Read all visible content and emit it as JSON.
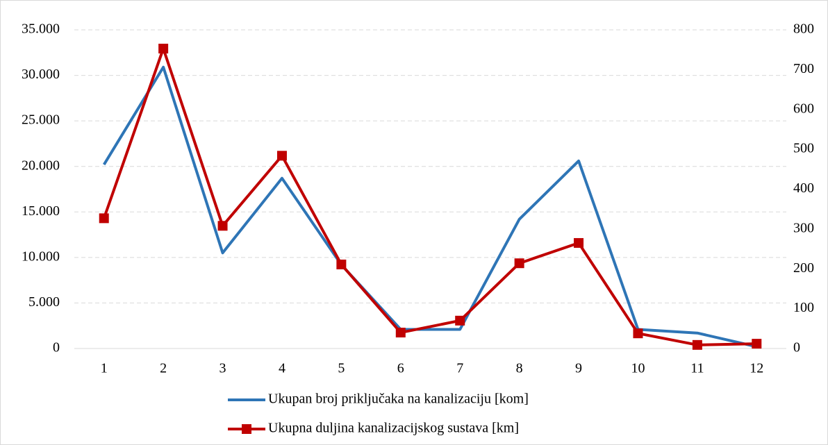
{
  "chart_data": {
    "type": "line",
    "categories": [
      "1",
      "2",
      "3",
      "4",
      "5",
      "6",
      "7",
      "8",
      "9",
      "10",
      "11",
      "12"
    ],
    "series": [
      {
        "name": "Ukupan broj priključaka na kanalizaciju [kom]",
        "color": "#2e75b6",
        "axis": "y",
        "values": [
          20200,
          30900,
          10500,
          18700,
          9200,
          2100,
          2100,
          14200,
          20600,
          2100,
          1700,
          200
        ]
      },
      {
        "name": "Ukupna duljina kanalizacijskog sustava [km]",
        "color": "#c00000",
        "axis": "y2",
        "marker": "square",
        "values": [
          327,
          753,
          308,
          484,
          211,
          40,
          70,
          214,
          265,
          38,
          9,
          12
        ]
      }
    ],
    "ylim": [
      0,
      35000
    ],
    "yticks": [
      0,
      {
        "value": 5000,
        "label": "5.000"
      },
      {
        "value": 10000,
        "label": "10.000"
      },
      {
        "value": 15000,
        "label": "15.000"
      },
      {
        "value": 20000,
        "label": "20.000"
      },
      {
        "value": 25000,
        "label": "25.000"
      },
      {
        "value": 30000,
        "label": "30.000"
      },
      {
        "value": 35000,
        "label": "35.000"
      }
    ],
    "y2lim": [
      0,
      800
    ],
    "y2ticks": [
      0,
      100,
      200,
      300,
      400,
      500,
      600,
      700,
      800
    ],
    "grid": true,
    "legend": "bottom"
  }
}
